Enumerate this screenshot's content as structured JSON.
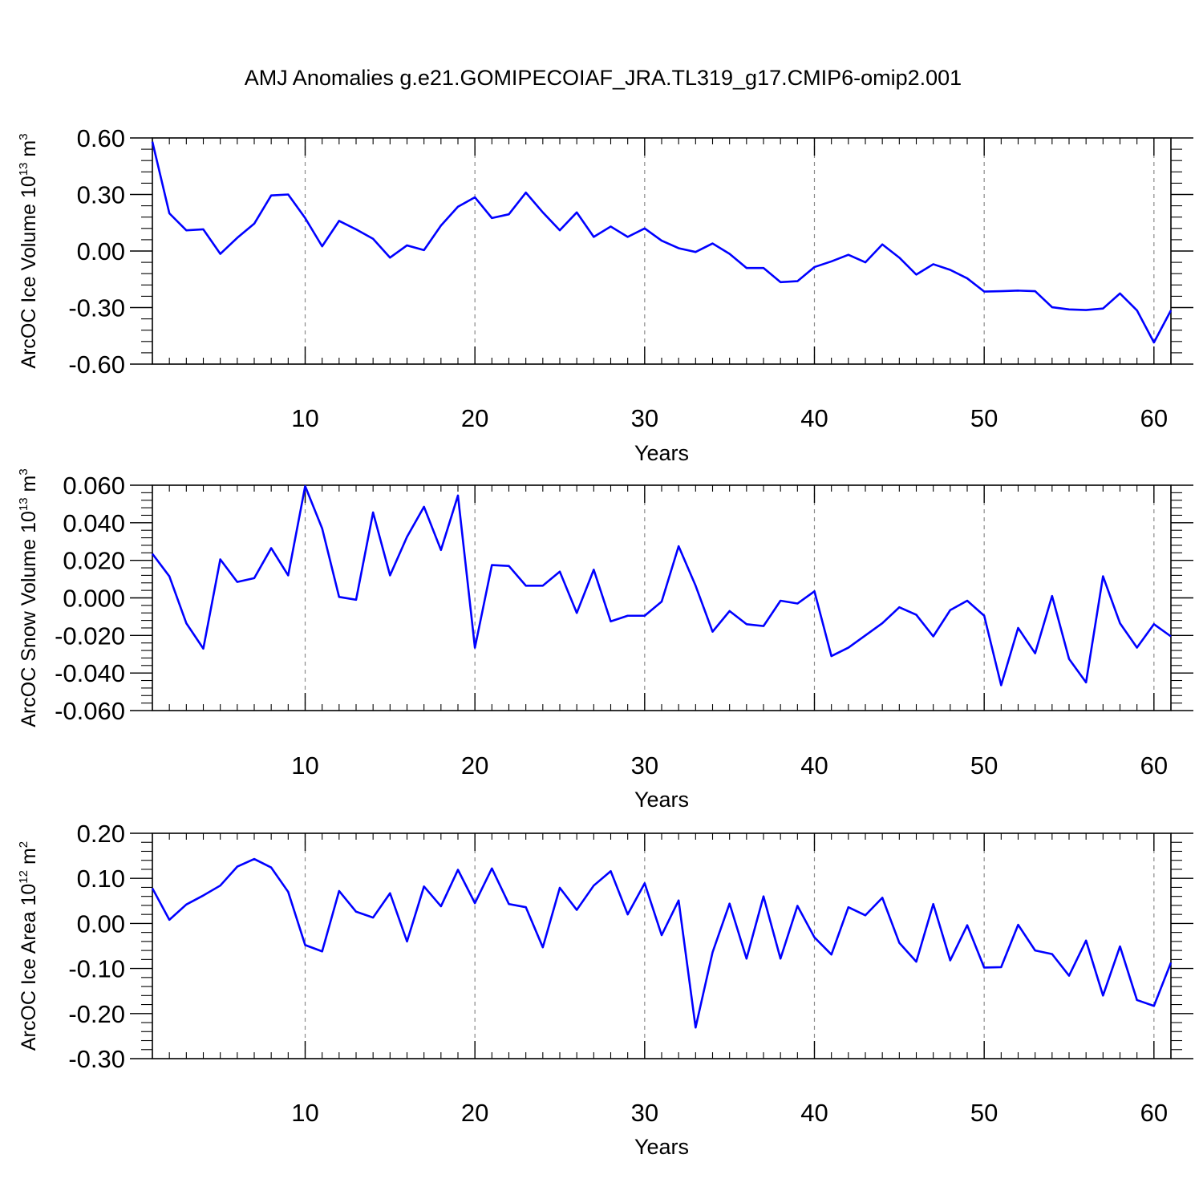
{
  "title": "AMJ Anomalies g.e21.GOMIPECOIAF_JRA.TL319_g17.CMIP6-omip2.001",
  "chart_data": [
    {
      "type": "line",
      "title": "AMJ Anomalies g.e21.GOMIPECOIAF_JRA.TL319_g17.CMIP6-omip2.001",
      "xlabel": "Years",
      "ylabel": "ArcOC Ice Volume 10",
      "ylabel_exp": "13",
      "ylabel_unit": " m",
      "ylabel_unit_exp": "3",
      "xlim": [
        1,
        61
      ],
      "ylim": [
        -0.6,
        0.6
      ],
      "xticks": [
        10,
        20,
        30,
        40,
        50,
        60
      ],
      "xtick_labels": [
        "10",
        "20",
        "30",
        "40",
        "50",
        "60"
      ],
      "yticks": [
        0.6,
        0.3,
        0.0,
        -0.3,
        -0.6
      ],
      "ytick_labels": [
        "0.60",
        "0.30",
        "0.00",
        "-0.30",
        "-0.60"
      ],
      "grid": "vertical dashed at major x ticks",
      "color": "#0000ff",
      "x_start": 1,
      "values": [
        0.58,
        0.2,
        0.11,
        0.115,
        -0.015,
        0.07,
        0.145,
        0.295,
        0.3,
        0.175,
        0.025,
        0.16,
        0.115,
        0.065,
        -0.035,
        0.03,
        0.005,
        0.135,
        0.235,
        0.285,
        0.175,
        0.195,
        0.31,
        0.205,
        0.11,
        0.205,
        0.075,
        0.13,
        0.075,
        0.12,
        0.055,
        0.015,
        -0.005,
        0.04,
        -0.015,
        -0.09,
        -0.09,
        -0.165,
        -0.16,
        -0.085,
        -0.055,
        -0.02,
        -0.06,
        0.035,
        -0.035,
        -0.125,
        -0.07,
        -0.1,
        -0.145,
        -0.215,
        -0.213,
        -0.21,
        -0.213,
        -0.298,
        -0.31,
        -0.313,
        -0.305,
        -0.225,
        -0.315,
        -0.485,
        -0.315
      ]
    },
    {
      "type": "line",
      "xlabel": "Years",
      "ylabel": "ArcOC Snow Volume 10",
      "ylabel_exp": "13",
      "ylabel_unit": " m",
      "ylabel_unit_exp": "3",
      "xlim": [
        1,
        61
      ],
      "ylim": [
        -0.06,
        0.06
      ],
      "xticks": [
        10,
        20,
        30,
        40,
        50,
        60
      ],
      "xtick_labels": [
        "10",
        "20",
        "30",
        "40",
        "50",
        "60"
      ],
      "yticks": [
        0.06,
        0.04,
        0.02,
        0.0,
        -0.02,
        -0.04,
        -0.06
      ],
      "ytick_labels": [
        "0.060",
        "0.040",
        "0.020",
        "0.000",
        "-0.020",
        "-0.040",
        "-0.060"
      ],
      "grid": "vertical dashed at major x ticks",
      "color": "#0000ff",
      "x_start": 1,
      "values": [
        0.0235,
        0.0115,
        -0.0135,
        -0.027,
        0.0205,
        0.0085,
        0.0105,
        0.0265,
        0.012,
        0.0595,
        0.037,
        0.0005,
        -0.001,
        0.0455,
        0.012,
        0.0325,
        0.0485,
        0.0255,
        0.0545,
        -0.0265,
        0.0175,
        0.017,
        0.0065,
        0.0065,
        0.014,
        -0.008,
        0.015,
        -0.0125,
        -0.0095,
        -0.0095,
        -0.002,
        0.0275,
        0.0065,
        -0.018,
        -0.007,
        -0.014,
        -0.015,
        -0.0015,
        -0.003,
        0.0035,
        -0.031,
        -0.0265,
        -0.02,
        -0.0135,
        -0.005,
        -0.009,
        -0.0205,
        -0.0065,
        -0.0015,
        -0.0095,
        -0.0465,
        -0.016,
        -0.0295,
        0.001,
        -0.0325,
        -0.045,
        0.0115,
        -0.0135,
        -0.0265,
        -0.014,
        -0.0205
      ]
    },
    {
      "type": "line",
      "xlabel": "Years",
      "ylabel": "ArcOC Ice Area 10",
      "ylabel_exp": "12",
      "ylabel_unit": " m",
      "ylabel_unit_exp": "2",
      "xlim": [
        1,
        61
      ],
      "ylim": [
        -0.3,
        0.2
      ],
      "xticks": [
        10,
        20,
        30,
        40,
        50,
        60
      ],
      "xtick_labels": [
        "10",
        "20",
        "30",
        "40",
        "50",
        "60"
      ],
      "yticks": [
        0.2,
        0.1,
        0.0,
        -0.1,
        -0.2,
        -0.3
      ],
      "ytick_labels": [
        "0.20",
        "0.10",
        "0.00",
        "-0.10",
        "-0.20",
        "-0.30"
      ],
      "grid": "vertical dashed at major x ticks",
      "color": "#0000ff",
      "x_start": 1,
      "values": [
        0.078,
        0.008,
        0.042,
        0.062,
        0.084,
        0.126,
        0.143,
        0.124,
        0.07,
        -0.048,
        -0.062,
        0.072,
        0.026,
        0.013,
        0.067,
        -0.04,
        0.082,
        0.038,
        0.119,
        0.045,
        0.122,
        0.043,
        0.036,
        -0.053,
        0.079,
        0.03,
        0.084,
        0.116,
        0.02,
        0.089,
        -0.026,
        0.051,
        -0.231,
        -0.064,
        0.044,
        -0.078,
        0.06,
        -0.078,
        0.039,
        -0.031,
        -0.069,
        0.036,
        0.018,
        0.057,
        -0.043,
        -0.085,
        0.043,
        -0.082,
        -0.004,
        -0.098,
        -0.097,
        -0.003,
        -0.06,
        -0.068,
        -0.116,
        -0.038,
        -0.16,
        -0.051,
        -0.17,
        -0.183,
        -0.087
      ]
    }
  ]
}
